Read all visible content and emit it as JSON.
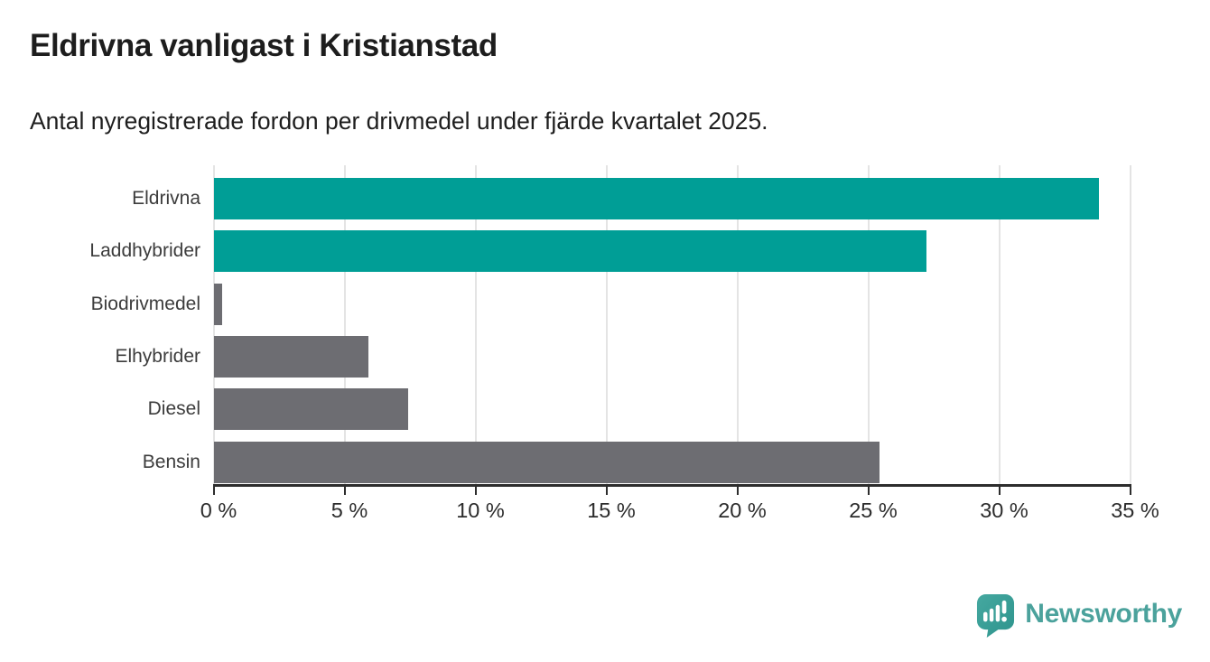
{
  "title": "Eldrivna vanligast i Kristianstad",
  "subtitle": "Antal nyregistrerade fordon per drivmedel under fjärde kvartalet 2025.",
  "brand": {
    "name": "Newsworthy",
    "icon": "bar-chart-speech-bubble-icon",
    "icon_color": "#3b9e96",
    "text_color": "#4ba29c"
  },
  "colors": {
    "highlight": "#009E96",
    "bar_gray": "#6D6D72",
    "gridline": "#e4e4e4",
    "axis": "#2d2d2d",
    "title_text": "#1d1d1d",
    "label_text": "#3c3c3c"
  },
  "chart_data": {
    "type": "bar",
    "orientation": "horizontal",
    "title": "Eldrivna vanligast i Kristianstad",
    "subtitle": "Antal nyregistrerade fordon per drivmedel under fjärde kvartalet 2025.",
    "categories": [
      "Eldrivna",
      "Laddhybrider",
      "Biodrivmedel",
      "Elhybrider",
      "Diesel",
      "Bensin"
    ],
    "values": [
      33.8,
      27.2,
      0.3,
      5.9,
      7.4,
      25.4
    ],
    "unit": "%",
    "xlim": [
      0,
      35
    ],
    "x_ticks": [
      0,
      5,
      10,
      15,
      20,
      25,
      30,
      35
    ],
    "x_tick_labels": [
      "0 %",
      "5 %",
      "10 %",
      "15 %",
      "20 %",
      "25 %",
      "30 %",
      "35 %"
    ],
    "highlighted": [
      true,
      true,
      false,
      false,
      false,
      false
    ],
    "highlight_color": "#009E96",
    "bar_color": "#6D6D72",
    "grid": true,
    "legend": false
  }
}
